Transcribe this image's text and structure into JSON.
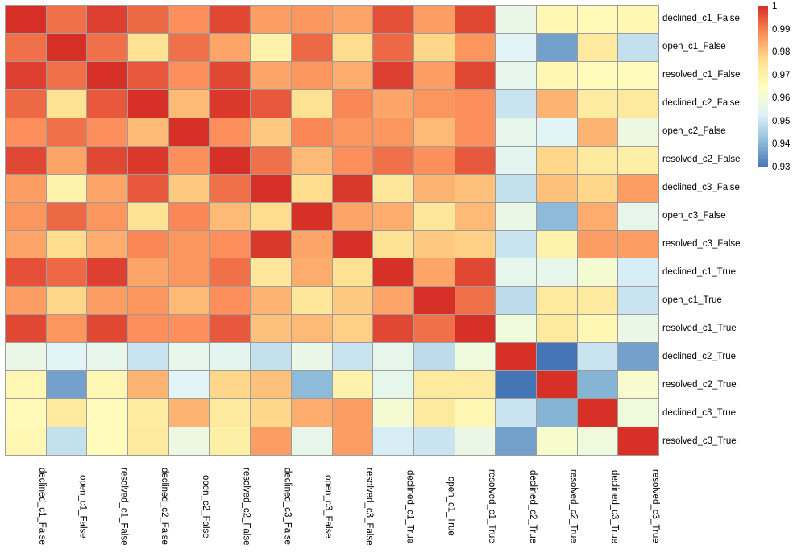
{
  "chart_data": {
    "type": "heatmap",
    "title": "",
    "labels": [
      "declined_c1_False",
      "open_c1_False",
      "resolved_c1_False",
      "declined_c2_False",
      "open_c2_False",
      "resolved_c2_False",
      "declined_c3_False",
      "open_c3_False",
      "resolved_c3_False",
      "declined_c1_True",
      "open_c1_True",
      "resolved_c1_True",
      "declined_c2_True",
      "resolved_c2_True",
      "declined_c3_True",
      "resolved_c3_True"
    ],
    "matrix": [
      [
        1.0,
        0.992,
        0.998,
        0.993,
        0.988,
        0.997,
        0.986,
        0.987,
        0.985,
        0.996,
        0.986,
        0.997,
        0.957,
        0.968,
        0.967,
        0.968
      ],
      [
        0.992,
        1.0,
        0.992,
        0.976,
        0.992,
        0.985,
        0.97,
        0.993,
        0.977,
        0.993,
        0.978,
        0.987,
        0.954,
        0.937,
        0.973,
        0.949
      ],
      [
        0.998,
        0.992,
        1.0,
        0.995,
        0.988,
        0.997,
        0.985,
        0.987,
        0.984,
        0.998,
        0.986,
        0.997,
        0.956,
        0.968,
        0.966,
        0.966
      ],
      [
        0.993,
        0.976,
        0.995,
        1.0,
        0.982,
        0.999,
        0.995,
        0.976,
        0.989,
        0.985,
        0.987,
        0.988,
        0.95,
        0.983,
        0.972,
        0.973
      ],
      [
        0.988,
        0.992,
        0.988,
        0.982,
        1.0,
        0.988,
        0.98,
        0.989,
        0.987,
        0.987,
        0.982,
        0.988,
        0.956,
        0.954,
        0.983,
        0.958
      ],
      [
        0.997,
        0.985,
        0.997,
        0.999,
        0.988,
        1.0,
        0.992,
        0.982,
        0.988,
        0.992,
        0.988,
        0.995,
        0.955,
        0.978,
        0.973,
        0.971
      ],
      [
        0.986,
        0.97,
        0.985,
        0.995,
        0.98,
        0.992,
        1.0,
        0.977,
        0.999,
        0.974,
        0.983,
        0.981,
        0.949,
        0.981,
        0.978,
        0.986
      ],
      [
        0.987,
        0.993,
        0.987,
        0.976,
        0.989,
        0.982,
        0.977,
        1.0,
        0.985,
        0.984,
        0.974,
        0.982,
        0.957,
        0.941,
        0.984,
        0.956
      ],
      [
        0.985,
        0.977,
        0.984,
        0.989,
        0.987,
        0.988,
        0.999,
        0.985,
        1.0,
        0.976,
        0.98,
        0.979,
        0.95,
        0.97,
        0.986,
        0.986
      ],
      [
        0.996,
        0.993,
        0.998,
        0.985,
        0.987,
        0.992,
        0.974,
        0.984,
        0.976,
        1.0,
        0.985,
        0.997,
        0.956,
        0.956,
        0.961,
        0.952
      ],
      [
        0.986,
        0.978,
        0.986,
        0.987,
        0.982,
        0.988,
        0.983,
        0.974,
        0.98,
        0.985,
        1.0,
        0.992,
        0.948,
        0.973,
        0.973,
        0.95
      ],
      [
        0.997,
        0.987,
        0.997,
        0.988,
        0.988,
        0.995,
        0.981,
        0.982,
        0.979,
        0.997,
        0.992,
        1.0,
        0.959,
        0.973,
        0.968,
        0.957
      ],
      [
        0.957,
        0.954,
        0.956,
        0.95,
        0.956,
        0.955,
        0.949,
        0.957,
        0.95,
        0.956,
        0.948,
        0.959,
        1.0,
        0.93,
        0.95,
        0.937
      ],
      [
        0.968,
        0.937,
        0.968,
        0.983,
        0.954,
        0.978,
        0.981,
        0.941,
        0.97,
        0.956,
        0.973,
        0.973,
        0.93,
        1.0,
        0.94,
        0.962
      ],
      [
        0.967,
        0.973,
        0.966,
        0.972,
        0.983,
        0.973,
        0.978,
        0.984,
        0.986,
        0.961,
        0.973,
        0.968,
        0.95,
        0.94,
        1.0,
        0.959
      ],
      [
        0.968,
        0.949,
        0.966,
        0.973,
        0.958,
        0.971,
        0.986,
        0.956,
        0.986,
        0.952,
        0.95,
        0.957,
        0.937,
        0.962,
        0.959,
        1.0
      ]
    ],
    "colorbar": {
      "min": 0.93,
      "max": 1.0,
      "ticks": [
        {
          "label": "1",
          "value": 1.0
        },
        {
          "label": "0.99",
          "value": 0.99
        },
        {
          "label": "0.98",
          "value": 0.98
        },
        {
          "label": "0.97",
          "value": 0.97
        },
        {
          "label": "0.96",
          "value": 0.96
        },
        {
          "label": "0.95",
          "value": 0.95
        },
        {
          "label": "0.94",
          "value": 0.94
        },
        {
          "label": "0.93",
          "value": 0.93
        }
      ]
    },
    "colormap": {
      "name": "RdYlBu_r",
      "stops": [
        "#4575b4",
        "#91bfdb",
        "#e0f3f8",
        "#ffffbf",
        "#fee090",
        "#fc8d59",
        "#d73027"
      ]
    },
    "grid_line_color": "#9d9d9d",
    "layout": {
      "legend_position": "right",
      "row_labels": "right",
      "col_labels": "bottom-rotated"
    }
  }
}
